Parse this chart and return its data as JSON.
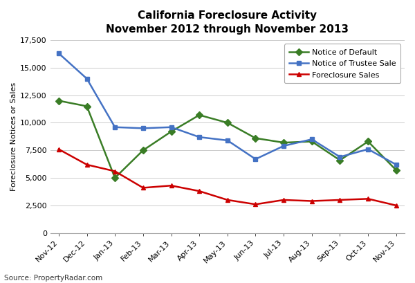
{
  "title_line1": "California Foreclosure Activity",
  "title_line2": "November 2012 through November 2013",
  "source": "Source: PropertyRadar.com",
  "ylabel": "Foreclosure Notices or Sales",
  "categories": [
    "Nov-12",
    "Dec-12",
    "Jan-13",
    "Feb-13",
    "Mar-13",
    "Apr-13",
    "May-13",
    "Jun-13",
    "Jul-13",
    "Aug-13",
    "Sep-13",
    "Oct-13",
    "Nov-13"
  ],
  "notice_of_default": [
    12000,
    11500,
    5000,
    7500,
    9200,
    10700,
    10000,
    8600,
    8200,
    8300,
    6600,
    8300,
    5700
  ],
  "notice_of_trustee_sale": [
    16300,
    14000,
    9600,
    9500,
    9600,
    8700,
    8400,
    6700,
    7900,
    8500,
    6900,
    7600,
    6200
  ],
  "foreclosure_sales": [
    7600,
    6200,
    5600,
    4100,
    4300,
    3800,
    3000,
    2600,
    3000,
    2900,
    3000,
    3100,
    2500
  ],
  "color_default": "#3a7d26",
  "color_trustee": "#4472c4",
  "color_foreclosure": "#cc0000",
  "ylim": [
    0,
    17500
  ],
  "yticks": [
    0,
    2500,
    5000,
    7500,
    10000,
    12500,
    15000,
    17500
  ],
  "legend_labels": [
    "Notice of Default",
    "Notice of Trustee Sale",
    "Foreclosure Sales"
  ],
  "background_color": "#ffffff",
  "grid_color": "#cccccc",
  "title_fontsize": 11,
  "tick_fontsize": 8,
  "ylabel_fontsize": 8,
  "legend_fontsize": 8,
  "source_fontsize": 7.5
}
